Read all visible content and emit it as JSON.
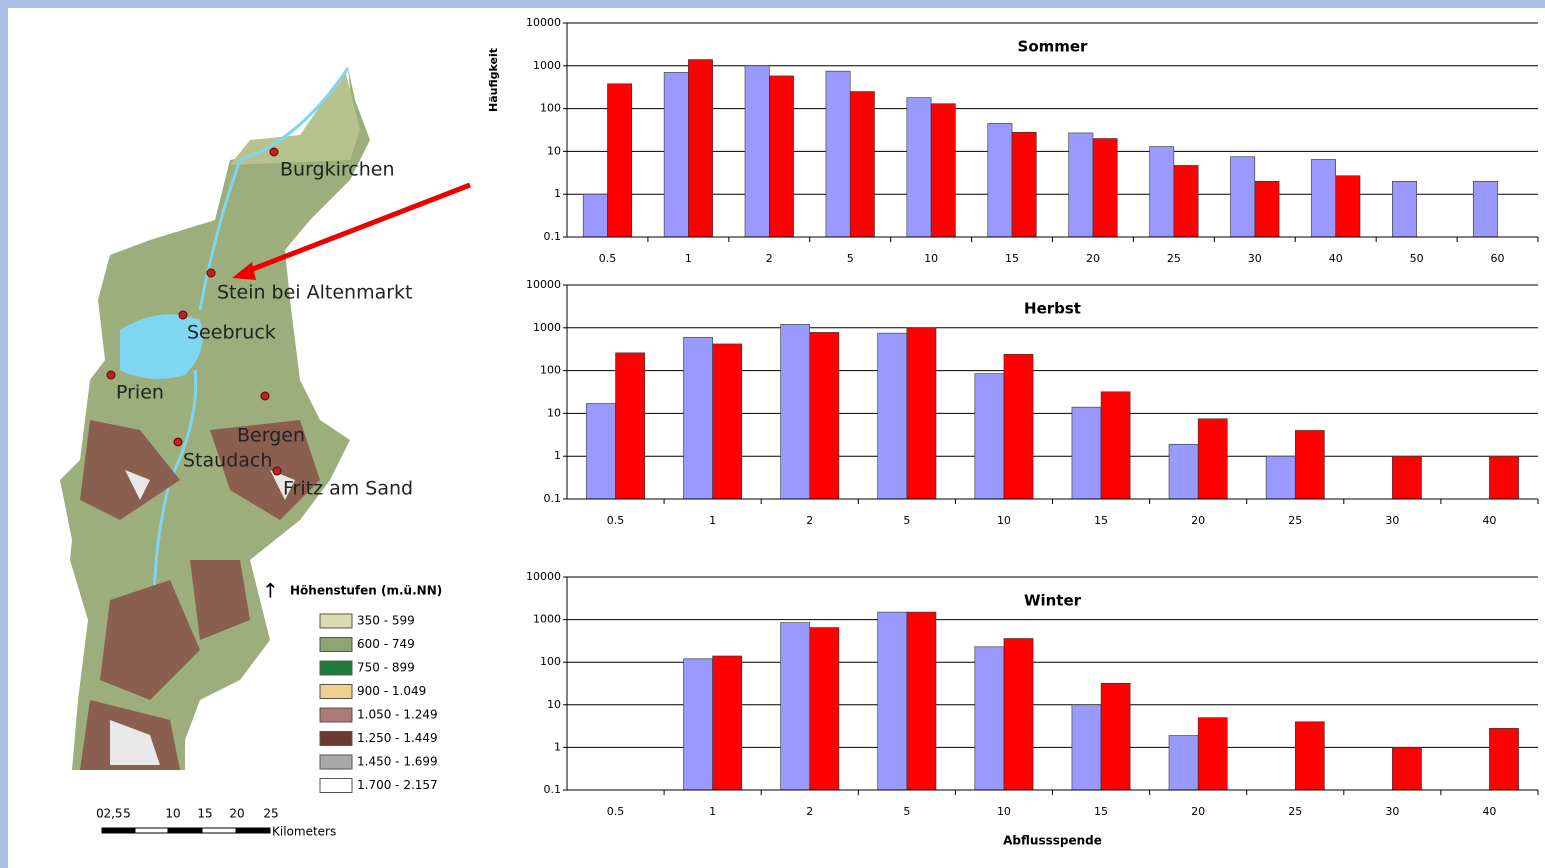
{
  "chart_data": [
    {
      "type": "bar",
      "title": "Sommer",
      "y_label": "Häufigkeit",
      "log_scale": true,
      "grid": true,
      "categories": [
        "0.5",
        "1",
        "2",
        "5",
        "10",
        "15",
        "20",
        "25",
        "30",
        "40",
        "50",
        "60"
      ],
      "series": [
        {
          "color": "#9999ff",
          "values": [
            1,
            700,
            1000,
            750,
            180,
            45,
            27,
            13,
            7.5,
            6.5,
            2,
            2
          ]
        },
        {
          "color": "#ff0000",
          "values": [
            380,
            1400,
            580,
            250,
            130,
            28,
            20,
            4.7,
            2,
            2.7,
            null,
            null
          ]
        }
      ],
      "ylim": [
        0.1,
        10000
      ],
      "yticks": [
        0.1,
        1,
        10,
        100,
        1000,
        10000
      ]
    },
    {
      "type": "bar",
      "title": "Herbst",
      "log_scale": true,
      "grid": true,
      "categories": [
        "0.5",
        "1",
        "2",
        "5",
        "10",
        "15",
        "20",
        "25",
        "30",
        "40"
      ],
      "series": [
        {
          "color": "#9999ff",
          "values": [
            17,
            600,
            1200,
            750,
            85,
            14,
            1.9,
            1,
            null,
            null
          ]
        },
        {
          "color": "#ff0000",
          "values": [
            260,
            420,
            780,
            1000,
            240,
            32,
            7.5,
            4,
            1,
            1
          ]
        }
      ],
      "ylim": [
        0.1,
        10000
      ],
      "yticks": [
        0.1,
        1,
        10,
        100,
        1000,
        10000
      ]
    },
    {
      "type": "bar",
      "title": "Winter",
      "x_label": "Abflussspende",
      "log_scale": true,
      "grid": true,
      "categories": [
        "0.5",
        "1",
        "2",
        "5",
        "10",
        "15",
        "20",
        "25",
        "30",
        "40"
      ],
      "series": [
        {
          "color": "#9999ff",
          "values": [
            null,
            120,
            850,
            1500,
            230,
            10,
            1.9,
            null,
            null,
            null
          ]
        },
        {
          "color": "#ff0000",
          "values": [
            null,
            140,
            650,
            1500,
            360,
            32,
            5,
            4,
            1,
            2.8
          ]
        }
      ],
      "ylim": [
        0.1,
        10000
      ],
      "yticks": [
        0.1,
        1,
        10,
        100,
        1000,
        10000
      ]
    }
  ],
  "map": {
    "places": [
      {
        "label": "Burgkirchen"
      },
      {
        "label": "Stein bei Altenmarkt"
      },
      {
        "label": "Seebruck"
      },
      {
        "label": "Prien"
      },
      {
        "label": "Bergen"
      },
      {
        "label": "Staudach"
      },
      {
        "label": "Fritz am Sand"
      }
    ],
    "legend": {
      "title": "Höhenstufen (m.ü.NN)",
      "items": [
        {
          "label": "350 - 599",
          "color": "#d9dcae"
        },
        {
          "label": "600 - 749",
          "color": "#8ea473"
        },
        {
          "label": "750 - 899",
          "color": "#1f7a3c"
        },
        {
          "label": "900 - 1.049",
          "color": "#f0d08c"
        },
        {
          "label": "1.050 - 1.249",
          "color": "#b07a74"
        },
        {
          "label": "1.250 - 1.449",
          "color": "#6b3a30"
        },
        {
          "label": "1.450 - 1.699",
          "color": "#a8a8a8"
        },
        {
          "label": "1.700 - 2.157",
          "color": "#ffffff"
        }
      ]
    },
    "scale": {
      "ticks": [
        "0",
        "2,5",
        "5",
        "10",
        "15",
        "20",
        "25"
      ],
      "unit": "Kilometers"
    }
  }
}
